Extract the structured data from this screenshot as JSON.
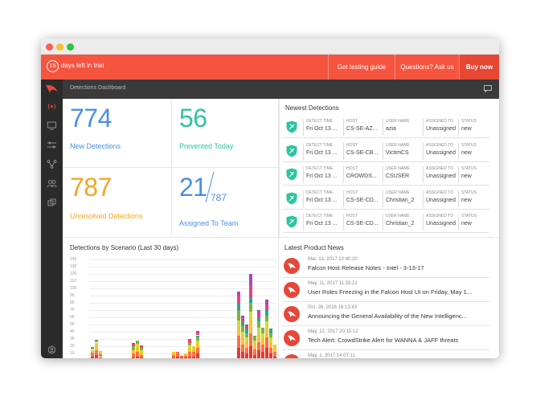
{
  "trial": {
    "days": "15",
    "text": "days left in trial",
    "link_guide": "Get testing guide",
    "link_questions": "Questions? Ask us",
    "link_buy": "Buy now"
  },
  "header": {
    "title": "Detections Dashboard"
  },
  "sidebar": {
    "icons": [
      "radar-icon",
      "monitor-icon",
      "sliders-icon",
      "network-icon",
      "users-icon",
      "layers-icon"
    ],
    "bottom_icon": "help-icon"
  },
  "stats": {
    "new_detections": {
      "value": "774",
      "label": "New Detections",
      "color": "#4a90e2"
    },
    "prevented_today": {
      "value": "56",
      "label": "Prevented Today",
      "color": "#2ec4a0"
    },
    "unresolved": {
      "value": "787",
      "label": "Unresolved Detections",
      "color": "#f5a623"
    },
    "assigned": {
      "value": "21",
      "total": "787",
      "label": "Assigned To Team",
      "color": "#4a90e2"
    }
  },
  "newest": {
    "title": "Newest Detections",
    "headers": [
      "DETECT TIME",
      "HOST",
      "USER NAME",
      "ASSIGNED TO",
      "STATUS"
    ],
    "rows": [
      [
        "Fri Oct 13 ...",
        "CS-SE-AZ...",
        "azia",
        "Unassigned",
        "new"
      ],
      [
        "Fri Oct 13 ...",
        "CS-SE-CB...",
        "VictimCS",
        "Unassigned",
        "new"
      ],
      [
        "Fri Oct 13 ...",
        "CROWDS...",
        "CSUSER",
        "Unassigned",
        "new"
      ],
      [
        "Fri Oct 13 ...",
        "CS-SE-CD...",
        "Christian_2",
        "Unassigned",
        "new"
      ],
      [
        "Fri Oct 13 ...",
        "CS-SE-CD...",
        "Christian_2",
        "Unassigned",
        "new"
      ]
    ]
  },
  "news": {
    "title": "Latest Product News",
    "items": [
      {
        "date": "Mar. 13, 2017 12:40:20",
        "title": "Falcon Host Release Notes - Intel - 3-13-17"
      },
      {
        "date": "May. 11, 2017 11:33:21",
        "title": "User Roles Freezing in the Falcon Host UI on Friday, May 1..."
      },
      {
        "date": "Oct. 26, 2016 16:13:43",
        "title": "Announcing the General Availability of the New Intelligenc..."
      },
      {
        "date": "May. 12, 2017 20:15:12",
        "title": "Tech Alert: CrowdStrike Alert for WANNA & JAFF threats"
      },
      {
        "date": "May. 1, 2017 14:07:11",
        "title": ""
      }
    ]
  },
  "chart_data": {
    "type": "bar",
    "title": "Detections by Scenario (Last 30 days)",
    "stacked": true,
    "yticks": [
      "140",
      "130",
      "120",
      "110",
      "100",
      "90",
      "80",
      "70",
      "60",
      "50",
      "40",
      "30",
      "20",
      "10"
    ],
    "ylim": [
      0,
      140
    ],
    "colors": [
      "#e53935",
      "#ff7043",
      "#fbc02d",
      "#cddc39",
      "#7cb342",
      "#26a69a",
      "#ec407a",
      "#ab47bc"
    ],
    "bars": [
      [
        6,
        5,
        4,
        0,
        4,
        0,
        0,
        0
      ],
      [
        8,
        6,
        6,
        5,
        4,
        0,
        0,
        0
      ],
      [
        5,
        4,
        4,
        0,
        0,
        0,
        0,
        0
      ],
      [
        0,
        0,
        0,
        0,
        0,
        0,
        0,
        0
      ],
      [
        0,
        0,
        0,
        0,
        0,
        0,
        0,
        0
      ],
      [
        0,
        0,
        0,
        0,
        0,
        0,
        0,
        0
      ],
      [
        0,
        0,
        0,
        0,
        0,
        0,
        0,
        0
      ],
      [
        0,
        0,
        0,
        0,
        0,
        0,
        0,
        0
      ],
      [
        0,
        0,
        0,
        0,
        0,
        0,
        0,
        0
      ],
      [
        0,
        0,
        0,
        0,
        0,
        0,
        0,
        0
      ],
      [
        5,
        5,
        4,
        0,
        6,
        0,
        3,
        2
      ],
      [
        6,
        6,
        6,
        5,
        5,
        0,
        0,
        0
      ],
      [
        4,
        4,
        3,
        3,
        4,
        0,
        3,
        0
      ],
      [
        0,
        0,
        0,
        0,
        0,
        0,
        0,
        0
      ],
      [
        0,
        0,
        0,
        0,
        0,
        0,
        0,
        0
      ],
      [
        0,
        0,
        0,
        0,
        0,
        0,
        0,
        0
      ],
      [
        0,
        0,
        0,
        0,
        0,
        0,
        0,
        0
      ],
      [
        0,
        0,
        0,
        0,
        0,
        0,
        0,
        0
      ],
      [
        0,
        0,
        0,
        0,
        0,
        0,
        0,
        0
      ],
      [
        0,
        0,
        0,
        0,
        0,
        0,
        0,
        0
      ],
      [
        4,
        4,
        4,
        0,
        0,
        0,
        0,
        0
      ],
      [
        6,
        6,
        0,
        0,
        0,
        0,
        0,
        0
      ],
      [
        4,
        3,
        0,
        0,
        0,
        0,
        0,
        0
      ],
      [
        4,
        3,
        3,
        0,
        0,
        0,
        0,
        0
      ],
      [
        6,
        6,
        5,
        4,
        4,
        0,
        5,
        0
      ],
      [
        6,
        6,
        5,
        3,
        0,
        0,
        0,
        0
      ],
      [
        10,
        8,
        6,
        4,
        4,
        3,
        4,
        2
      ],
      [
        0,
        0,
        0,
        0,
        0,
        0,
        0,
        0
      ],
      [
        0,
        0,
        0,
        0,
        0,
        0,
        0,
        0
      ],
      [
        0,
        0,
        0,
        0,
        0,
        0,
        0,
        0
      ],
      [
        0,
        0,
        0,
        0,
        0,
        0,
        0,
        0
      ],
      [
        0,
        0,
        0,
        0,
        0,
        0,
        0,
        0
      ],
      [
        0,
        0,
        0,
        0,
        0,
        0,
        0,
        0
      ],
      [
        0,
        0,
        0,
        0,
        0,
        0,
        0,
        0
      ],
      [
        0,
        0,
        0,
        0,
        0,
        0,
        0,
        0
      ],
      [
        0,
        0,
        0,
        0,
        0,
        0,
        0,
        0
      ],
      [
        18,
        16,
        12,
        10,
        14,
        10,
        10,
        6
      ],
      [
        12,
        10,
        10,
        8,
        8,
        6,
        6,
        2
      ],
      [
        10,
        8,
        8,
        6,
        6,
        6,
        4,
        2
      ],
      [
        20,
        18,
        18,
        12,
        12,
        8,
        16,
        16
      ],
      [
        8,
        8,
        6,
        6,
        6,
        0,
        0,
        0
      ],
      [
        14,
        12,
        10,
        10,
        8,
        6,
        6,
        4
      ],
      [
        12,
        10,
        8,
        8,
        8,
        0,
        0,
        0
      ],
      [
        18,
        14,
        12,
        10,
        8,
        8,
        8,
        6
      ],
      [
        10,
        8,
        8,
        6,
        6,
        6,
        0,
        0
      ],
      [
        6,
        6,
        6,
        4,
        0,
        0,
        0,
        0
      ]
    ]
  }
}
